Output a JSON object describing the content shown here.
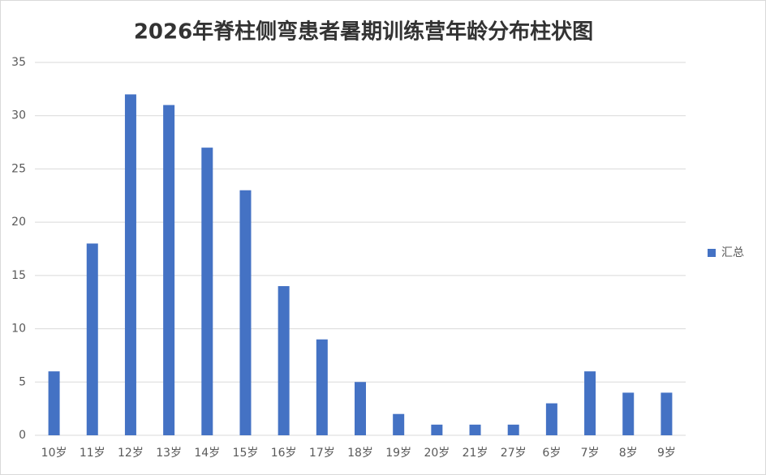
{
  "chart_data": {
    "type": "bar",
    "title": "2026年脊柱侧弯患者暑期训练营年龄分布柱状图",
    "categories": [
      "10岁",
      "11岁",
      "12岁",
      "13岁",
      "14岁",
      "15岁",
      "16岁",
      "17岁",
      "18岁",
      "19岁",
      "20岁",
      "21岁",
      "27岁",
      "6岁",
      "7岁",
      "8岁",
      "9岁"
    ],
    "series": [
      {
        "name": "汇总",
        "color": "#4472c4",
        "values": [
          6,
          18,
          32,
          31,
          27,
          23,
          14,
          9,
          5,
          2,
          1,
          1,
          1,
          3,
          6,
          4,
          4
        ]
      }
    ],
    "ylim": [
      0,
      35
    ],
    "yticks": [
      0,
      5,
      10,
      15,
      20,
      25,
      30,
      35
    ],
    "grid": true,
    "legend": "right"
  }
}
